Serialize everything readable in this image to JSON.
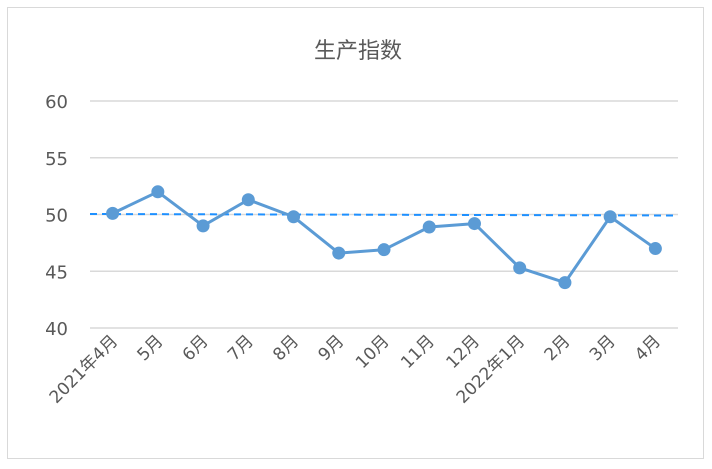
{
  "chart_data": {
    "type": "line",
    "title": "生产指数",
    "categories": [
      "2021年4月",
      "5月",
      "6月",
      "7月",
      "8月",
      "9月",
      "10月",
      "11月",
      "12月",
      "2022年1月",
      "2月",
      "3月",
      "4月"
    ],
    "series": [
      {
        "values": [
          50.1,
          52.0,
          49.0,
          51.3,
          49.8,
          46.6,
          46.9,
          48.9,
          49.2,
          45.3,
          44.0,
          49.8,
          47.0
        ],
        "color": "#5b9bd5",
        "markers": true
      }
    ],
    "reference_line": {
      "value": 50,
      "style": "dashed",
      "color": "#1e90ff"
    },
    "yticks": [
      40,
      45,
      50,
      55,
      60
    ],
    "ylim": [
      40,
      60
    ],
    "xlabel": "",
    "ylabel": "",
    "grid": true,
    "legend": "none"
  }
}
